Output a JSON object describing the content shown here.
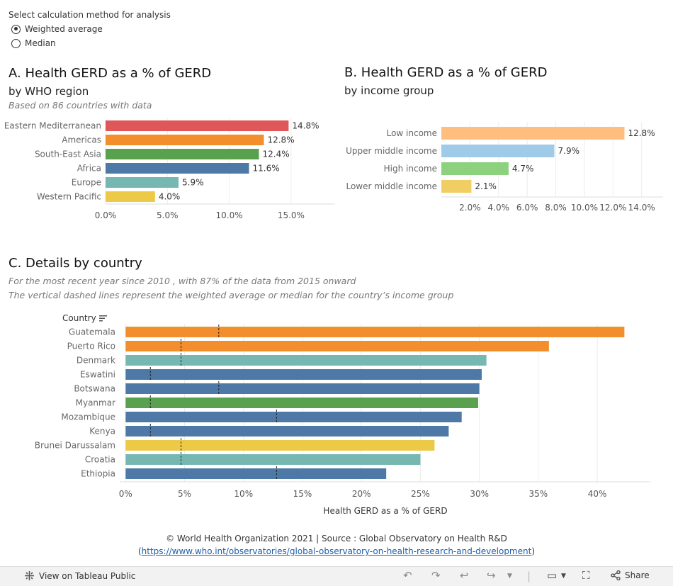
{
  "control": {
    "title": "Select calculation method for analysis",
    "options": [
      {
        "label": "Weighted average",
        "selected": true
      },
      {
        "label": "Median",
        "selected": false
      }
    ]
  },
  "panel_a": {
    "title": "A. Health GERD as a % of GERD",
    "subtitle": "by WHO region",
    "note": "Based on  86 countries with data"
  },
  "panel_b": {
    "title": "B. Health GERD as a % of GERD",
    "subtitle": "by income group"
  },
  "panel_c": {
    "title": "C. Details by country",
    "note1": "For the most recent year since 2010 , with 87% of the data from 2015 onward",
    "note2": "The vertical dashed lines represent the weighted average or median for the country’s income group",
    "column_header": "Country"
  },
  "chart_data": [
    {
      "type": "bar",
      "orientation": "horizontal",
      "categories": [
        "Eastern Mediterranean",
        "Americas",
        "South-East Asia",
        "Africa",
        "Europe",
        "Western Pacific"
      ],
      "values": [
        14.8,
        12.8,
        12.4,
        11.6,
        5.9,
        4.0
      ],
      "labels": [
        "14.8%",
        "12.8%",
        "12.4%",
        "11.6%",
        "5.9%",
        "4.0%"
      ],
      "colors": [
        "#e05759",
        "#f28e2b",
        "#59a14f",
        "#4e79a7",
        "#76b7b2",
        "#edc948"
      ],
      "xlim": [
        0,
        18.5
      ],
      "xticks": [
        0,
        5,
        10,
        15
      ],
      "xtick_labels": [
        "0.0%",
        "5.0%",
        "10.0%",
        "15.0%"
      ]
    },
    {
      "type": "bar",
      "orientation": "horizontal",
      "categories": [
        "Low income",
        "Upper middle income",
        "High income",
        "Lower middle income"
      ],
      "values": [
        12.8,
        7.9,
        4.7,
        2.1
      ],
      "labels": [
        "12.8%",
        "7.9%",
        "4.7%",
        "2.1%"
      ],
      "colors": [
        "#ffbe7d",
        "#a0cbe8",
        "#8cd17d",
        "#f1ce63"
      ],
      "xlim": [
        0,
        15.5
      ],
      "xticks": [
        2,
        4,
        6,
        8,
        10,
        12,
        14
      ],
      "xtick_labels": [
        "2.0%",
        "4.0%",
        "6.0%",
        "8.0%",
        "10.0%",
        "12.0%",
        "14.0%"
      ]
    },
    {
      "type": "bar",
      "orientation": "horizontal",
      "xlabel": "Health GERD as a % of GERD",
      "categories": [
        "Guatemala",
        "Puerto Rico",
        "Denmark",
        "Eswatini",
        "Botswana",
        "Myanmar",
        "Mozambique",
        "Kenya",
        "Brunei Darussalam",
        "Croatia",
        "Ethiopia"
      ],
      "values": [
        42.3,
        35.9,
        30.6,
        30.2,
        30.0,
        29.9,
        28.5,
        27.4,
        26.2,
        25.0,
        22.1
      ],
      "colors": [
        "#f28e2b",
        "#f28e2b",
        "#76b7b2",
        "#4e79a7",
        "#4e79a7",
        "#59a14f",
        "#4e79a7",
        "#4e79a7",
        "#edc948",
        "#76b7b2",
        "#4e79a7"
      ],
      "reference_values": [
        7.9,
        4.7,
        4.7,
        2.1,
        7.9,
        2.1,
        12.8,
        2.1,
        4.7,
        4.7,
        12.8
      ],
      "xlim": [
        -0.5,
        44.5
      ],
      "xticks": [
        0,
        5,
        10,
        15,
        20,
        25,
        30,
        35,
        40
      ],
      "xtick_labels": [
        "0%",
        "5%",
        "10%",
        "15%",
        "20%",
        "25%",
        "30%",
        "35%",
        "40%"
      ]
    }
  ],
  "footer": {
    "line1": "© World Health Organization 2021 | Source : Global Observatory on Health R&D",
    "link_open": "(",
    "link": "https://www.who.int/observatories/global-observatory-on-health-research-and-development",
    "link_close": ")"
  },
  "toolbar": {
    "view_label": "View on Tableau Public",
    "share_label": "Share"
  }
}
